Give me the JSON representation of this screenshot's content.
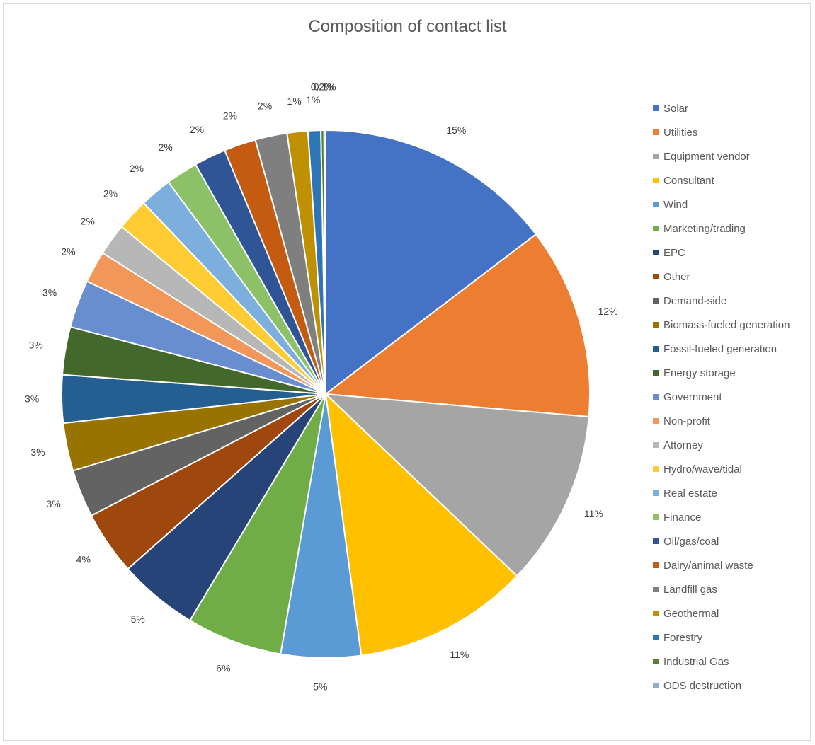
{
  "chart_data": {
    "type": "pie",
    "title": "Composition of contact list",
    "legend_position": "right",
    "series": [
      {
        "name": "Solar",
        "value": 15,
        "label": "15%",
        "color": "#4472C4"
      },
      {
        "name": "Utilities",
        "value": 12,
        "label": "12%",
        "color": "#ED7D31"
      },
      {
        "name": "Equipment vendor",
        "value": 11,
        "label": "11%",
        "color": "#A5A5A5"
      },
      {
        "name": "Consultant",
        "value": 11,
        "label": "11%",
        "color": "#FFC000"
      },
      {
        "name": "Wind",
        "value": 5,
        "label": "5%",
        "color": "#5B9BD5"
      },
      {
        "name": "Marketing/trading",
        "value": 6,
        "label": "6%",
        "color": "#70AD47"
      },
      {
        "name": "EPC",
        "value": 5,
        "label": "5%",
        "color": "#264478"
      },
      {
        "name": "Other",
        "value": 4,
        "label": "4%",
        "color": "#9E480E"
      },
      {
        "name": "Demand-side",
        "value": 3,
        "label": "3%",
        "color": "#636363"
      },
      {
        "name": "Biomass-fueled generation",
        "value": 3,
        "label": "3%",
        "color": "#997300"
      },
      {
        "name": "Fossil-fueled generation",
        "value": 3,
        "label": "3%",
        "color": "#255E91"
      },
      {
        "name": "Energy storage",
        "value": 3,
        "label": "3%",
        "color": "#43682B"
      },
      {
        "name": "Government",
        "value": 3,
        "label": "3%",
        "color": "#698ED0"
      },
      {
        "name": "Non-profit",
        "value": 2,
        "label": "2%",
        "color": "#F1975A"
      },
      {
        "name": "Attorney",
        "value": 2,
        "label": "2%",
        "color": "#B7B7B7"
      },
      {
        "name": "Hydro/wave/tidal",
        "value": 2,
        "label": "2%",
        "color": "#FFCD33"
      },
      {
        "name": "Real estate",
        "value": 2,
        "label": "2%",
        "color": "#7CAFDD"
      },
      {
        "name": "Finance",
        "value": 2,
        "label": "2%",
        "color": "#8CC168"
      },
      {
        "name": "Oil/gas/coal",
        "value": 2,
        "label": "2%",
        "color": "#2F5597"
      },
      {
        "name": "Dairy/animal waste",
        "value": 2,
        "label": "2%",
        "color": "#C55A11"
      },
      {
        "name": "Landfill gas",
        "value": 2,
        "label": "2%",
        "color": "#7F7F7F"
      },
      {
        "name": "Geothermal",
        "value": 1.3,
        "label": "1%",
        "color": "#BF9000"
      },
      {
        "name": "Forestry",
        "value": 0.8,
        "label": "1%",
        "color": "#2E75B6"
      },
      {
        "name": "Industrial Gas",
        "value": 0.2,
        "label": "0.2%",
        "color": "#548235"
      },
      {
        "name": "ODS destruction",
        "value": 0.1,
        "label": "0.1%",
        "color": "#8FAADC"
      }
    ]
  }
}
